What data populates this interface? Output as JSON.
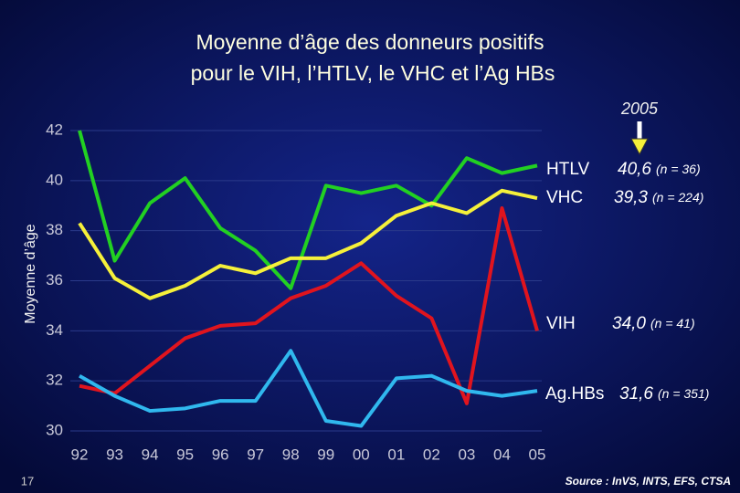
{
  "chart_data": {
    "type": "line",
    "title": [
      "Moyenne d’âge des donneurs positifs",
      "pour le VIH, l’HTLV, le VHC et l’Ag HBs"
    ],
    "y_label": "Moyenne d’âge",
    "annotation": "2005",
    "page_number": "17",
    "source": "Source : InVS, INTS, EFS, CTSA",
    "categories": [
      "92",
      "93",
      "94",
      "95",
      "96",
      "97",
      "98",
      "99",
      "00",
      "01",
      "02",
      "03",
      "04",
      "05"
    ],
    "ylim": [
      30,
      42
    ],
    "yticks": [
      30,
      32,
      34,
      36,
      38,
      40,
      42
    ],
    "grid": true,
    "series": [
      {
        "name": "HTLV",
        "color": "#22d022",
        "end_label": "40,6",
        "end_n": "(n = 36)",
        "values": [
          42,
          36.8,
          39.1,
          40.1,
          38.1,
          37.2,
          35.7,
          39.8,
          39.5,
          39.8,
          39.0,
          40.9,
          40.3,
          40.6
        ]
      },
      {
        "name": "VHC",
        "color": "#f5f03a",
        "end_label": "39,3",
        "end_n": "(n = 224)",
        "values": [
          38.3,
          36.1,
          35.3,
          35.8,
          36.6,
          36.3,
          36.9,
          36.9,
          37.5,
          38.6,
          39.1,
          38.7,
          39.6,
          39.3
        ]
      },
      {
        "name": "VIH",
        "color": "#e0141e",
        "end_label": "34,0",
        "end_n": "(n = 41)",
        "values": [
          31.8,
          31.5,
          32.6,
          33.7,
          34.2,
          34.3,
          35.3,
          35.8,
          36.7,
          35.4,
          34.5,
          31.1,
          38.9,
          34.0
        ]
      },
      {
        "name": "Ag.HBs",
        "color": "#30b8ee",
        "end_label": "31,6",
        "end_n": "(n = 351)",
        "values": [
          32.2,
          31.4,
          30.8,
          30.9,
          31.2,
          31.2,
          33.2,
          30.4,
          30.2,
          32.1,
          32.2,
          31.6,
          31.4,
          31.6
        ]
      }
    ]
  }
}
